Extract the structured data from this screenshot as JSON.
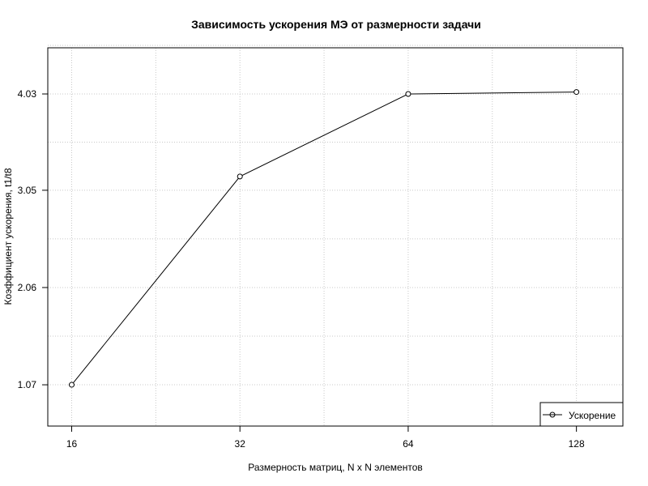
{
  "chart_data": {
    "type": "line",
    "title": "Зависимость ускорения МЭ от размерности задачи",
    "xlabel": "Размерность матриц, N x N элементов",
    "ylabel": "Коэффициент ускорения, t1/t8",
    "x_scale": "log2",
    "x": [
      16,
      32,
      64,
      128
    ],
    "x_tick_labels": [
      "16",
      "32",
      "64",
      "128"
    ],
    "y_ticks": [
      1.07,
      2.06,
      3.05,
      4.03
    ],
    "y_tick_labels": [
      "1.07",
      "2.06",
      "3.05",
      "4.03"
    ],
    "xlim": [
      14.5,
      155
    ],
    "ylim": [
      0.65,
      4.5
    ],
    "grid": true,
    "legend_position": "bottom-right",
    "series": [
      {
        "name": "Ускорение",
        "values": [
          1.07,
          3.19,
          4.03,
          4.05
        ],
        "marker": "open-circle",
        "color": "#000000"
      }
    ]
  }
}
